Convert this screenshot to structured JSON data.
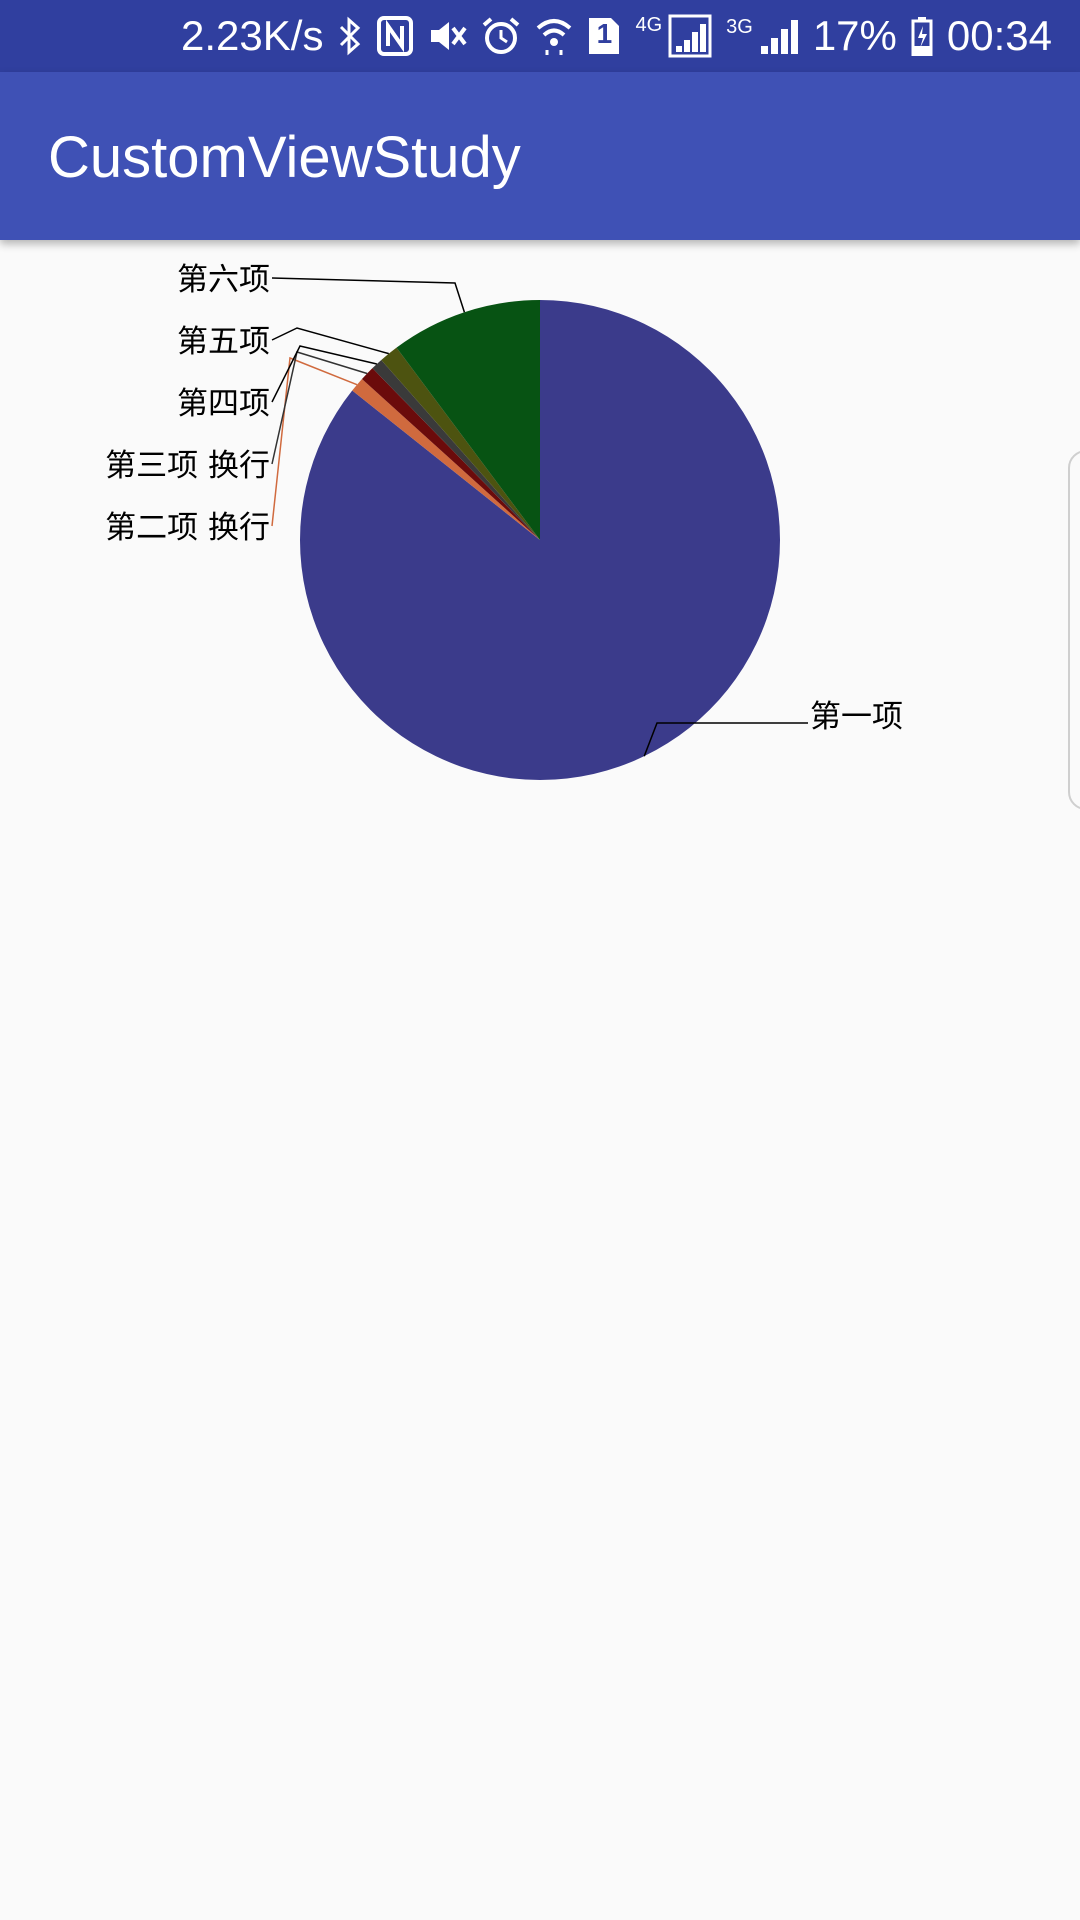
{
  "status_bar": {
    "net_speed": "2.23K/s",
    "sim_slot": "1",
    "net_4g": "4G",
    "net_3g": "3G",
    "battery_percent": "17%",
    "time": "00:34",
    "icons": [
      "bluetooth-icon",
      "nfc-icon",
      "mute-icon",
      "alarm-icon",
      "wifi-icon",
      "sim-icon",
      "signal-4g-icon",
      "signal-3g-icon",
      "battery-icon"
    ]
  },
  "app_bar": {
    "title": "CustomViewStudy"
  },
  "colors": {
    "status_bar": "#303f9f",
    "app_bar": "#3f51b5",
    "background": "#fafafa"
  },
  "chart_data": {
    "type": "pie",
    "labels": [
      "第一项",
      "第二项  换行",
      "第三项 换行",
      "第四项",
      "第五项",
      "第六项"
    ],
    "values": [
      85.7,
      1.0,
      1.0,
      0.8,
      1.3,
      10.2
    ],
    "colors": [
      "#3b3b8b",
      "#d06a3e",
      "#6b0b0b",
      "#3a3a3a",
      "#4d5310",
      "#075313"
    ]
  }
}
